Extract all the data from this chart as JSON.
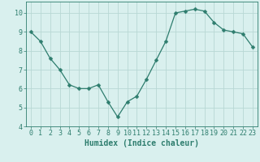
{
  "x": [
    0,
    1,
    2,
    3,
    4,
    5,
    6,
    7,
    8,
    9,
    10,
    11,
    12,
    13,
    14,
    15,
    16,
    17,
    18,
    19,
    20,
    21,
    22,
    23
  ],
  "y": [
    9.0,
    8.5,
    7.6,
    7.0,
    6.2,
    6.0,
    6.0,
    6.2,
    5.3,
    4.5,
    5.3,
    5.6,
    6.5,
    7.5,
    8.5,
    10.0,
    10.1,
    10.2,
    10.1,
    9.5,
    9.1,
    9.0,
    8.9,
    8.2
  ],
  "line_color": "#2e7d6e",
  "marker": "D",
  "marker_size": 2.5,
  "bg_color": "#d9f0ee",
  "grid_color": "#b8d8d4",
  "xlabel": "Humidex (Indice chaleur)",
  "xlim": [
    -0.5,
    23.5
  ],
  "ylim": [
    4,
    10.6
  ],
  "yticks": [
    4,
    5,
    6,
    7,
    8,
    9,
    10
  ],
  "xticks": [
    0,
    1,
    2,
    3,
    4,
    5,
    6,
    7,
    8,
    9,
    10,
    11,
    12,
    13,
    14,
    15,
    16,
    17,
    18,
    19,
    20,
    21,
    22,
    23
  ],
  "tick_color": "#2e7d6e",
  "label_color": "#2e7d6e",
  "font_size": 6,
  "xlabel_font_size": 7
}
